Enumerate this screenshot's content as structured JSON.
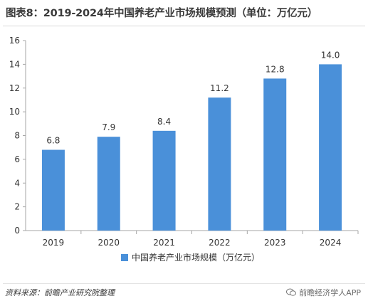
{
  "header": {
    "title": "图表8：2019-2024年中国养老产业市场规模预测（单位：万亿元）"
  },
  "footer": {
    "source": "资料来源：前瞻产业研究院整理",
    "brand": "前瞻经济学人APP",
    "brand_icon": "chat-bubble-icon"
  },
  "chart_data": {
    "type": "bar",
    "title": "图表8：2019-2024年中国养老产业市场规模预测（单位：万亿元）",
    "categories": [
      "2019",
      "2020",
      "2021",
      "2022",
      "2023",
      "2024"
    ],
    "series": [
      {
        "name": "中国养老产业市场规模（万亿元）",
        "values": [
          6.8,
          7.9,
          8.4,
          11.2,
          12.8,
          14.0
        ]
      }
    ],
    "value_labels": [
      "6.8",
      "7.9",
      "8.4",
      "11.2",
      "12.8",
      "14.0"
    ],
    "ylim": [
      0,
      16
    ],
    "yticks": [
      0,
      2,
      4,
      6,
      8,
      10,
      12,
      14,
      16
    ],
    "grid": false,
    "legend_position": "bottom-center",
    "bar_color": "#4a90d9"
  }
}
